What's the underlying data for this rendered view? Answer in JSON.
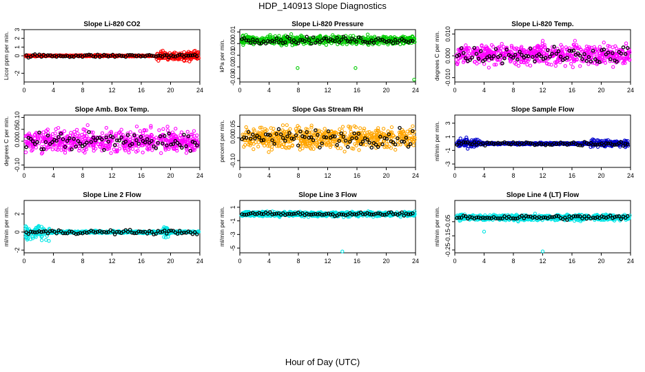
{
  "figure": {
    "title": "HDP_140913  Slope Diagnostics",
    "xlabel": "Hour of Day (UTC)"
  },
  "chart_data": [
    {
      "type": "scatter",
      "title": "Slope Li-820 CO2",
      "ylabel": "Licor ppm per min.",
      "xlim": [
        0,
        24
      ],
      "ylim": [
        -3,
        3
      ],
      "xticks": [
        "0",
        "4",
        "8",
        "12",
        "16",
        "20",
        "24"
      ],
      "yticks": [
        "-2",
        "0",
        "1",
        "2",
        "3"
      ],
      "ytick_values": [
        -2,
        0,
        1,
        2,
        3
      ],
      "xtick_values": [
        0,
        4,
        8,
        12,
        16,
        20,
        24
      ],
      "series_color": "#ff0000",
      "overlay_color": "#000000",
      "spread": 0.35,
      "notes": "dense red points near 0, widening after hour 18 to about -2.5..2.8"
    },
    {
      "type": "scatter",
      "title": "Slope Li-820 Pressure",
      "ylabel": "kPa per min.",
      "xlim": [
        0,
        24
      ],
      "ylim": [
        -0.033,
        0.012
      ],
      "xticks": [
        "0",
        "4",
        "8",
        "12",
        "16",
        "20",
        "24"
      ],
      "yticks": [
        "-0.03",
        "-0.02",
        "-0.01",
        "0.00",
        "0.01"
      ],
      "ytick_values": [
        -0.03,
        -0.02,
        -0.01,
        0.0,
        0.01
      ],
      "xtick_values": [
        0,
        4,
        8,
        12,
        16,
        20,
        24
      ],
      "series_color": "#00cc00",
      "overlay_color": "#000000",
      "outliers": [
        [
          7.9,
          -0.021
        ],
        [
          15.8,
          -0.021
        ],
        [
          23.8,
          -0.031
        ]
      ]
    },
    {
      "type": "scatter",
      "title": "Slope Li-820 Temp.",
      "ylabel": "degrees C per min.",
      "xlim": [
        0,
        24
      ],
      "ylim": [
        -0.012,
        0.012
      ],
      "xticks": [
        "0",
        "4",
        "8",
        "12",
        "16",
        "20",
        "24"
      ],
      "yticks": [
        "-0.010",
        "0.000",
        "0.010"
      ],
      "ytick_values": [
        -0.01,
        0.0,
        0.01
      ],
      "xtick_values": [
        0,
        4,
        8,
        12,
        16,
        20,
        24
      ],
      "series_color": "#ff00ff",
      "overlay_color": "#000000"
    },
    {
      "type": "scatter",
      "title": "Slope Amb. Box Temp.",
      "ylabel": "degrees C per min.",
      "xlim": [
        0,
        24
      ],
      "ylim": [
        -0.11,
        0.11
      ],
      "xticks": [
        "0",
        "4",
        "8",
        "12",
        "16",
        "20",
        "24"
      ],
      "yticks": [
        "-0.10",
        "0.00",
        "0.05",
        "0.10"
      ],
      "ytick_values": [
        -0.1,
        0.0,
        0.05,
        0.1
      ],
      "xtick_values": [
        0,
        4,
        8,
        12,
        16,
        20,
        24
      ],
      "series_color": "#ff00ff",
      "overlay_color": "#000000"
    },
    {
      "type": "scatter",
      "title": "Slope Gas Stream RH",
      "ylabel": "percent per min.",
      "xlim": [
        0,
        24
      ],
      "ylim": [
        -0.13,
        0.1
      ],
      "xticks": [
        "0",
        "4",
        "8",
        "12",
        "16",
        "20",
        "24"
      ],
      "yticks": [
        "-0.10",
        "0.00",
        "0.05"
      ],
      "ytick_values": [
        -0.1,
        0.0,
        0.05
      ],
      "xtick_values": [
        0,
        4,
        8,
        12,
        16,
        20,
        24
      ],
      "series_color": "#ffa500",
      "overlay_color": "#000000"
    },
    {
      "type": "scatter",
      "title": "Slope Sample Flow",
      "ylabel": "ml/min per min.",
      "xlim": [
        0,
        24
      ],
      "ylim": [
        -3.5,
        4.2
      ],
      "xticks": [
        "0",
        "4",
        "8",
        "12",
        "16",
        "20",
        "24"
      ],
      "yticks": [
        "-3",
        "-1",
        "1",
        "3"
      ],
      "ytick_values": [
        -3,
        -1,
        1,
        3
      ],
      "xtick_values": [
        0,
        4,
        8,
        12,
        16,
        20,
        24
      ],
      "series_color": "#0000cc",
      "overlay_color": "#000000"
    },
    {
      "type": "scatter",
      "title": "Slope Line 2 Flow",
      "ylabel": "ml/min per min.",
      "xlim": [
        0,
        24
      ],
      "ylim": [
        -2.3,
        3.5
      ],
      "xticks": [
        "0",
        "4",
        "8",
        "12",
        "16",
        "20",
        "24"
      ],
      "yticks": [
        "-2",
        "0",
        "2"
      ],
      "ytick_values": [
        -2,
        0,
        2
      ],
      "xtick_values": [
        0,
        4,
        8,
        12,
        16,
        20,
        24
      ],
      "series_color": "#00e5e5",
      "overlay_color": "#000000"
    },
    {
      "type": "scatter",
      "title": "Slope Line 3 Flow",
      "ylabel": "ml/min per min.",
      "xlim": [
        0,
        24
      ],
      "ylim": [
        -5.7,
        2
      ],
      "xticks": [
        "0",
        "4",
        "8",
        "12",
        "16",
        "20",
        "24"
      ],
      "yticks": [
        "-5",
        "-3",
        "-1",
        "1"
      ],
      "ytick_values": [
        -5,
        -3,
        -1,
        1
      ],
      "xtick_values": [
        0,
        4,
        8,
        12,
        16,
        20,
        24
      ],
      "series_color": "#00e5e5",
      "overlay_color": "#000000",
      "outliers": [
        [
          14,
          -5.5
        ]
      ]
    },
    {
      "type": "scatter",
      "title": "Slope Line 4 (LT) Flow",
      "ylabel": "ml/min per min.",
      "xlim": [
        0,
        24
      ],
      "ylim": [
        -0.27,
        0.1
      ],
      "xticks": [
        "0",
        "4",
        "8",
        "12",
        "16",
        "20",
        "24"
      ],
      "yticks": [
        "-0.25",
        "-0.15",
        "-0.05"
      ],
      "ytick_values": [
        -0.25,
        -0.15,
        -0.05
      ],
      "xtick_values": [
        0,
        4,
        8,
        12,
        16,
        20,
        24
      ],
      "series_color": "#00e5e5",
      "overlay_color": "#000000",
      "outliers": [
        [
          4,
          -0.12
        ],
        [
          12,
          -0.26
        ]
      ]
    }
  ]
}
